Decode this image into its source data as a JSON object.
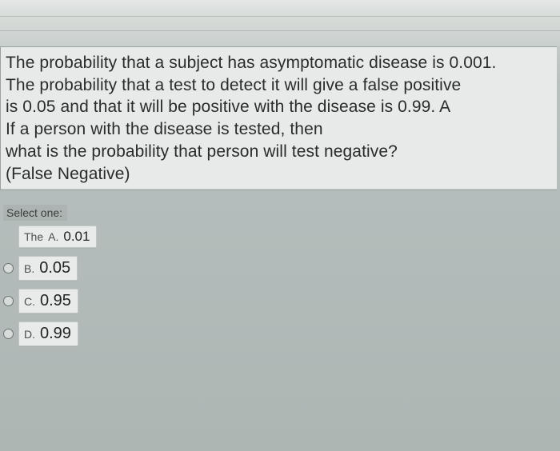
{
  "question": {
    "lines": [
      "The probability that a subject has asymptomatic disease is 0.001.",
      "The probability that a test to detect it will give a false positive",
      "is 0.05 and that it will be positive with the disease is 0.99. A",
      "If a person with the disease is tested, then",
      "what is the probability that person will test negative?",
      "(False Negative)"
    ]
  },
  "select_label": "Select one:",
  "options": [
    {
      "prefix": "The",
      "letter": "A.",
      "value": "0.01",
      "has_radio": false
    },
    {
      "prefix": "",
      "letter": "B.",
      "value": "0.05",
      "has_radio": true
    },
    {
      "prefix": "",
      "letter": "C.",
      "value": "0.95",
      "has_radio": true
    },
    {
      "prefix": "",
      "letter": "D.",
      "value": "0.99",
      "has_radio": true
    }
  ],
  "colors": {
    "page_bg_top": "#cdd3d1",
    "page_bg_bottom": "#aeb6b4",
    "box_bg": "#e7eae9",
    "box_border": "#9aa19f",
    "text": "#2b2b2b",
    "chip_bg": "#e8ebea",
    "chip_border": "#c1c7c5",
    "radio_border": "#6b7471"
  }
}
